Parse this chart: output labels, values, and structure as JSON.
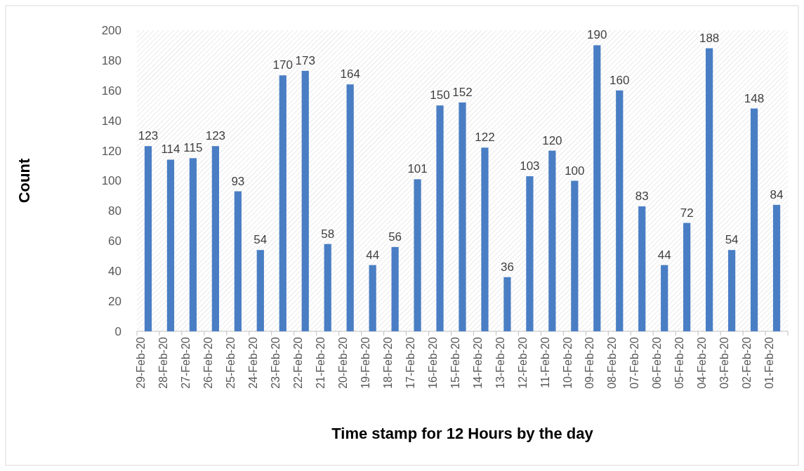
{
  "chart_data": {
    "type": "bar",
    "xlabel": "Time stamp for 12 Hours by the day",
    "ylabel": "Count",
    "categories": [
      "29-Feb-20",
      "28-Feb-20",
      "27-Feb-20",
      "26-Feb-20",
      "25-Feb-20",
      "24-Feb-20",
      "23-Feb-20",
      "22-Feb-20",
      "21-Feb-20",
      "20-Feb-20",
      "19-Feb-20",
      "18-Feb-20",
      "17-Feb-20",
      "16-Feb-20",
      "15-Feb-20",
      "14-Feb-20",
      "13-Feb-20",
      "12-Feb-20",
      "11-Feb-20",
      "10-Feb-20",
      "09-Feb-20",
      "08-Feb-20",
      "07-Feb-20",
      "06-Feb-20",
      "05-Feb-20",
      "04-Feb-20",
      "03-Feb-20",
      "02-Feb-20",
      "01-Feb-20"
    ],
    "values": [
      123,
      114,
      115,
      123,
      93,
      54,
      170,
      173,
      58,
      164,
      44,
      56,
      101,
      150,
      152,
      122,
      36,
      103,
      120,
      100,
      190,
      160,
      83,
      44,
      72,
      188,
      54,
      148,
      84
    ],
    "color": "#4a7ec4",
    "ylim": [
      0,
      200
    ],
    "yticks": [
      0,
      20,
      40,
      60,
      80,
      100,
      120,
      140,
      160,
      180,
      200
    ],
    "grid": false,
    "data_labels": true
  }
}
